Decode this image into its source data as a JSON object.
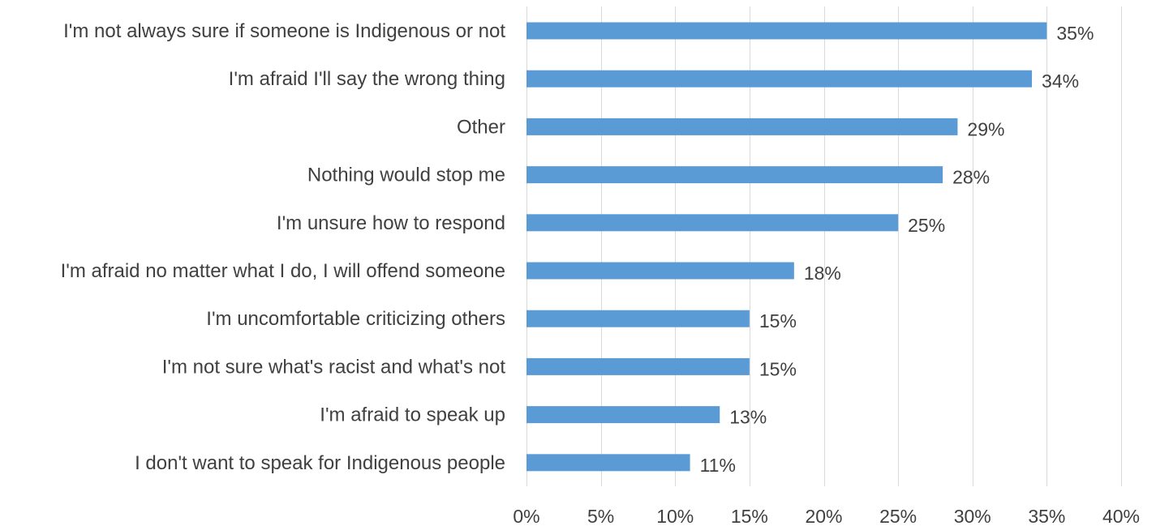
{
  "chart_data": {
    "type": "bar",
    "orientation": "horizontal",
    "categories": [
      "I'm not always sure if someone is Indigenous or not",
      "I'm afraid I'll say the wrong thing",
      "Other",
      "Nothing would stop me",
      "I'm unsure how to respond",
      "I'm afraid no matter what I do, I will offend someone",
      "I'm uncomfortable criticizing others",
      "I'm not sure what's racist and what's not",
      "I'm afraid to speak up",
      "I don't want to speak for Indigenous people"
    ],
    "values": [
      35,
      34,
      29,
      28,
      25,
      18,
      15,
      15,
      13,
      11
    ],
    "value_labels": [
      "35%",
      "34%",
      "29%",
      "28%",
      "25%",
      "18%",
      "15%",
      "15%",
      "13%",
      "11%"
    ],
    "xlim": [
      0,
      40
    ],
    "xticks": [
      0,
      5,
      10,
      15,
      20,
      25,
      30,
      35,
      40
    ],
    "xtick_labels": [
      "0%",
      "5%",
      "10%",
      "15%",
      "20%",
      "25%",
      "30%",
      "35%",
      "40%"
    ],
    "title": "",
    "xlabel": "",
    "ylabel": "",
    "grid": "vertical",
    "legend": "none",
    "colors": {
      "bar": "#5B9BD5",
      "gridline": "#D9D9D9",
      "text": "#404040"
    }
  }
}
